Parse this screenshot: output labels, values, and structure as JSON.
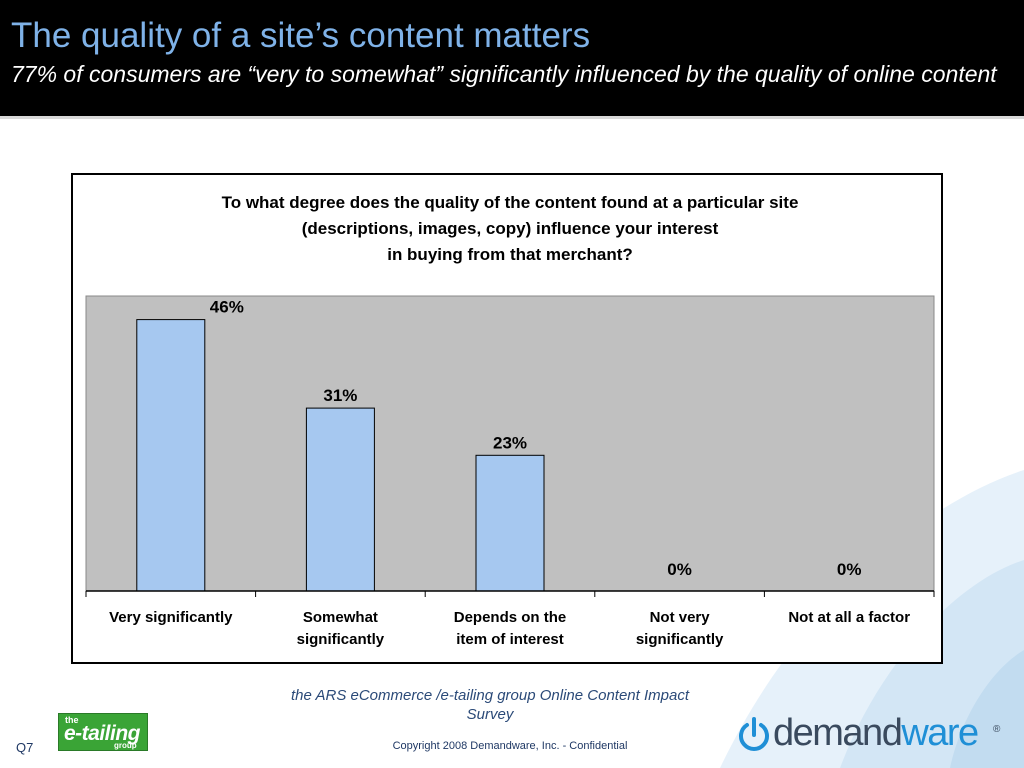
{
  "slide": {
    "title": "The quality of a site’s content matters",
    "subtitle": "77% of consumers are “very to somewhat” significantly influenced by the quality of online content",
    "source": "the ARS eCommerce /e-tailing group Online Content Impact Survey",
    "copyright": "Copyright 2008 Demandware, Inc. - Confidential",
    "slide_number": "Q7"
  },
  "logos": {
    "etailing": {
      "small": "the",
      "main": "e-tailing",
      "group": "group"
    },
    "demandware": {
      "part1": "demand",
      "part2": "ware",
      "registered": "®"
    }
  },
  "colors": {
    "bar": "#a6c8f0",
    "plot_bg": "#c0c0c0",
    "header_bg": "#000000",
    "title": "#7fb2e8",
    "demandware_blue": "#1f8fd6"
  },
  "chart_data": {
    "type": "bar",
    "title": "To what degree does the quality of the content found at a particular site (descriptions, images, copy) influence your interest in buying from that merchant?",
    "title_lines": [
      "To what degree does the quality of the content found at a particular site",
      "(descriptions, images, copy) influence your interest",
      "in buying from that merchant?"
    ],
    "categories": [
      [
        "Very significantly"
      ],
      [
        "Somewhat",
        "significantly"
      ],
      [
        "Depends on the",
        "item of interest"
      ],
      [
        "Not very",
        "significantly"
      ],
      [
        "Not at all a factor"
      ]
    ],
    "values": [
      46,
      31,
      23,
      0,
      0
    ],
    "value_labels": [
      "46%",
      "31%",
      "23%",
      "0%",
      "0%"
    ],
    "ylim": [
      0,
      50
    ],
    "grid": false,
    "legend": "none"
  }
}
